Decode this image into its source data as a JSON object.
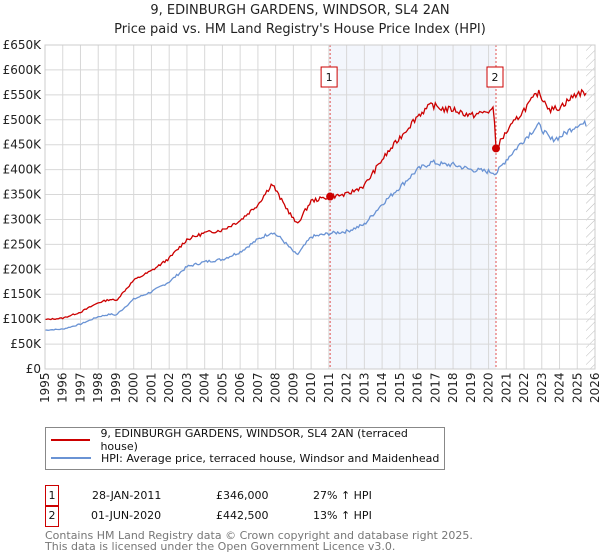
{
  "title": "9, EDINBURGH GARDENS, WINDSOR, SL4 2AN",
  "subtitle": "Price paid vs. HM Land Registry's House Price Index (HPI)",
  "chart_data": {
    "type": "line",
    "xlim": [
      1995,
      2026
    ],
    "ylim": [
      0,
      650000
    ],
    "y_ticks": [
      0,
      50000,
      100000,
      150000,
      200000,
      250000,
      300000,
      350000,
      400000,
      450000,
      500000,
      550000,
      600000,
      650000
    ],
    "y_tick_labels": [
      "£0",
      "£50K",
      "£100K",
      "£150K",
      "£200K",
      "£250K",
      "£300K",
      "£350K",
      "£400K",
      "£450K",
      "£500K",
      "£550K",
      "£600K",
      "£650K"
    ],
    "x_tick_labels": [
      "1995",
      "1996",
      "1997",
      "1998",
      "1999",
      "2000",
      "2001",
      "2002",
      "2003",
      "2004",
      "2005",
      "2006",
      "2007",
      "2008",
      "2009",
      "2010",
      "2011",
      "2012",
      "2013",
      "2014",
      "2015",
      "2016",
      "2017",
      "2018",
      "2019",
      "2020",
      "2021",
      "2022",
      "2023",
      "2024",
      "2025",
      "2026"
    ],
    "grid": true,
    "series": [
      {
        "name": "9, EDINBURGH GARDENS, WINDSOR, SL4 2AN (terraced house)",
        "color": "#cc0000",
        "x": [
          1995,
          1996,
          1997,
          1998,
          1998.7,
          1999,
          2000,
          2001,
          2002,
          2003,
          2004,
          2005,
          2006,
          2007,
          2007.8,
          2008.3,
          2009.2,
          2010,
          2011.07,
          2012,
          2013,
          2014,
          2015,
          2016,
          2016.8,
          2017.5,
          2018,
          2019,
          2020.3,
          2020.42,
          2021,
          2022,
          2022.8,
          2023.5,
          2024,
          2025,
          2025.5
        ],
        "y": [
          99000,
          102000,
          114000,
          133000,
          140000,
          137000,
          178000,
          197000,
          222000,
          260000,
          273000,
          279000,
          298000,
          330000,
          372000,
          340000,
          290000,
          337000,
          346000,
          350000,
          368000,
          420000,
          464000,
          508000,
          530000,
          521000,
          521000,
          508000,
          520000,
          442500,
          475000,
          520000,
          555000,
          520000,
          525000,
          553000,
          555000
        ]
      },
      {
        "name": "HPI: Average price, terraced house, Windsor and Maidenhead",
        "color": "#6a93d4",
        "x": [
          1995,
          1996,
          1997,
          1998,
          1998.7,
          1999,
          2000,
          2001,
          2002,
          2003,
          2004,
          2005,
          2006,
          2007,
          2007.8,
          2008.3,
          2009.2,
          2010,
          2011.07,
          2012,
          2013,
          2014,
          2015,
          2016,
          2016.8,
          2017.5,
          2018,
          2019,
          2020.3,
          2020.42,
          2021,
          2022,
          2022.8,
          2023.5,
          2024,
          2025,
          2025.5
        ],
        "y": [
          78000,
          80000,
          90000,
          105000,
          110000,
          108000,
          140000,
          155000,
          175000,
          205000,
          215000,
          220000,
          235000,
          260000,
          275000,
          262000,
          228000,
          265000,
          272000,
          276000,
          290000,
          331000,
          365000,
          400000,
          415000,
          410000,
          410000,
          400000,
          395000,
          392000,
          420000,
          460000,
          490000,
          460000,
          465000,
          490000,
          492000
        ]
      }
    ],
    "annotations": [
      {
        "label": "1",
        "x": 2011.07,
        "y": 346000
      },
      {
        "label": "2",
        "x": 2020.42,
        "y": 442500
      }
    ],
    "shaded_range": [
      2011.07,
      2020.42
    ],
    "hatched_from": 2025.5
  },
  "legend": {
    "items": [
      {
        "label": "9, EDINBURGH GARDENS, WINDSOR, SL4 2AN (terraced house)",
        "color": "#cc0000"
      },
      {
        "label": "HPI: Average price, terraced house, Windsor and Maidenhead",
        "color": "#6a93d4"
      }
    ]
  },
  "transactions": [
    {
      "num": "1",
      "date": "28-JAN-2011",
      "price": "£346,000",
      "delta": "27% ↑ HPI"
    },
    {
      "num": "2",
      "date": "01-JUN-2020",
      "price": "£442,500",
      "delta": "13% ↑ HPI"
    }
  ],
  "footer": {
    "line1": "Contains HM Land Registry data © Crown copyright and database right 2025.",
    "line2": "This data is licensed under the Open Government Licence v3.0."
  }
}
